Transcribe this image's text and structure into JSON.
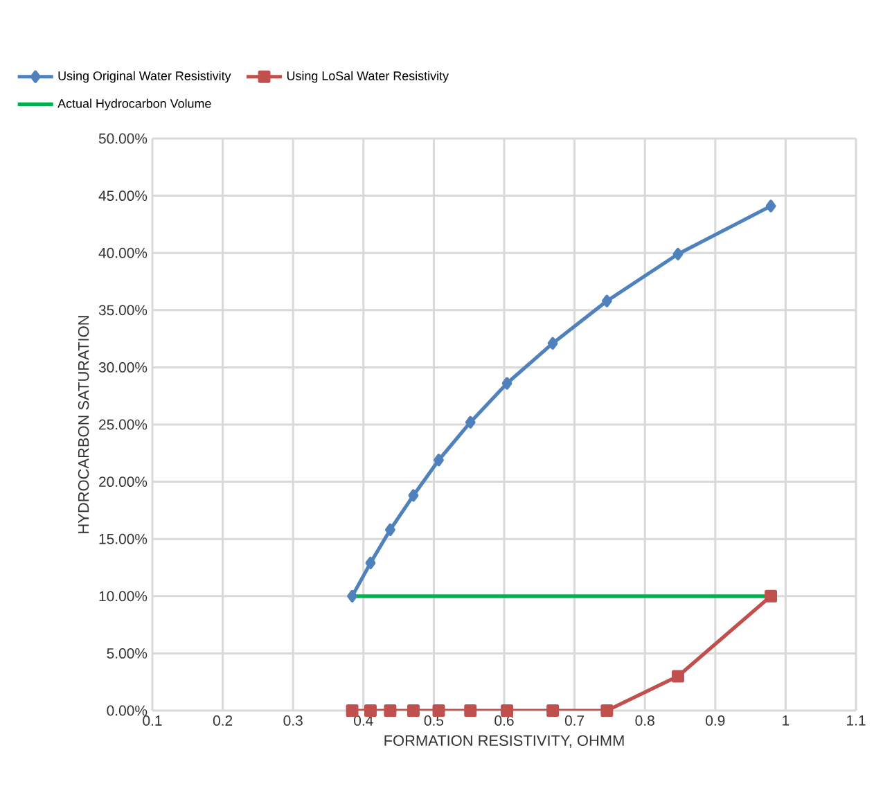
{
  "chart_data": {
    "type": "line",
    "xlabel": "FORMATION RESISTIVITY, OHMM",
    "ylabel": "HYDROCARBON SATURATION",
    "xlim": [
      0.1,
      1.1
    ],
    "xticks": [
      0.1,
      0.2,
      0.3,
      0.4,
      0.5,
      0.6,
      0.7,
      0.8,
      0.9,
      1,
      1.1
    ],
    "ylim": [
      0,
      50
    ],
    "yticks": [
      {
        "value": 0,
        "label": "0.00%"
      },
      {
        "value": 5,
        "label": "5.00%"
      },
      {
        "value": 10,
        "label": "10.00%"
      },
      {
        "value": 15,
        "label": "15.00%"
      },
      {
        "value": 20,
        "label": "20.00%"
      },
      {
        "value": 25,
        "label": "25.00%"
      },
      {
        "value": 30,
        "label": "30.00%"
      },
      {
        "value": 35,
        "label": "35.00%"
      },
      {
        "value": 40,
        "label": "40.00%"
      },
      {
        "value": 45,
        "label": "45.00%"
      },
      {
        "value": 50,
        "label": "50.00%"
      }
    ],
    "grid": true,
    "legend": "top",
    "line_style": "solid",
    "series": [
      {
        "name": "Using Original Water Resistivity",
        "color": "#4f81bd",
        "marker": "diamond",
        "x": [
          0.384,
          0.41,
          0.438,
          0.471,
          0.507,
          0.552,
          0.604,
          0.669,
          0.746,
          0.847,
          0.979
        ],
        "values": [
          10.0,
          12.9,
          15.8,
          18.8,
          21.9,
          25.2,
          28.6,
          32.1,
          35.8,
          39.9,
          44.1
        ]
      },
      {
        "name": "Using LoSal Water Resistivity",
        "color": "#c0504d",
        "marker": "square",
        "x": [
          0.384,
          0.41,
          0.438,
          0.471,
          0.507,
          0.552,
          0.604,
          0.669,
          0.746,
          0.847,
          0.979
        ],
        "values": [
          0,
          0,
          0,
          0,
          0,
          0,
          0,
          0,
          0,
          3.0,
          10.0
        ]
      },
      {
        "name": "Actual Hydrocarbon Volume",
        "color": "#00b050",
        "marker": "none",
        "x": [
          0.384,
          0.979
        ],
        "values": [
          10,
          10
        ]
      }
    ]
  }
}
